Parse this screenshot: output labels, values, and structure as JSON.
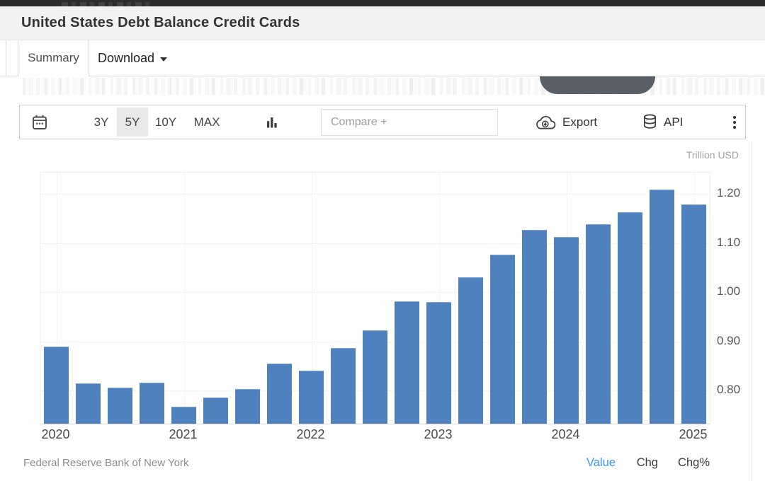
{
  "top_nav": {
    "bg": "#2d2d2d"
  },
  "header": {
    "title": "United States Debt Balance Credit Cards"
  },
  "tabs": {
    "summary": "Summary",
    "download": "Download"
  },
  "toolbar": {
    "ranges": [
      "3Y",
      "5Y",
      "10Y",
      "MAX"
    ],
    "active_range": "5Y",
    "compare_placeholder": "Compare +",
    "export_label": "Export",
    "api_label": "API"
  },
  "chart": {
    "unit_label": "Trillion USD"
  },
  "chart_data": {
    "type": "bar",
    "title": "United States Debt Balance Credit Cards",
    "ylabel": "Trillion USD",
    "xlabel": "",
    "x": [
      "2020 Q1",
      "2020 Q2",
      "2020 Q3",
      "2020 Q4",
      "2021 Q1",
      "2021 Q2",
      "2021 Q3",
      "2021 Q4",
      "2022 Q1",
      "2022 Q2",
      "2022 Q3",
      "2022 Q4",
      "2023 Q1",
      "2023 Q2",
      "2023 Q3",
      "2023 Q4",
      "2024 Q1",
      "2024 Q2",
      "2024 Q3",
      "2024 Q4",
      "2025 Q1"
    ],
    "values": [
      0.89,
      0.815,
      0.806,
      0.817,
      0.768,
      0.786,
      0.803,
      0.855,
      0.841,
      0.887,
      0.923,
      0.981,
      0.98,
      1.03,
      1.077,
      1.127,
      1.113,
      1.138,
      1.163,
      1.208,
      1.179
    ],
    "year_ticks": [
      {
        "label": "2020",
        "index": 0
      },
      {
        "label": "2021",
        "index": 4
      },
      {
        "label": "2022",
        "index": 8
      },
      {
        "label": "2023",
        "index": 12
      },
      {
        "label": "2024",
        "index": 16
      },
      {
        "label": "2025",
        "index": 20
      }
    ],
    "yticks": [
      {
        "value": 0.8,
        "label": "0.80"
      },
      {
        "value": 0.9,
        "label": "0.90"
      },
      {
        "value": 1.0,
        "label": "1.00"
      },
      {
        "value": 1.1,
        "label": "1.10"
      },
      {
        "value": 1.2,
        "label": "1.20"
      }
    ],
    "ylim": [
      0.733,
      1.243
    ],
    "grid": true,
    "legend": false,
    "bar_color": "#4e81bd",
    "bar_border_color": "#7ba1ce"
  },
  "footer": {
    "source": "Federal Reserve Bank of New York",
    "columns": [
      "Value",
      "Chg",
      "Chg%"
    ],
    "value_color": "#3a97f2"
  },
  "misc": {
    "cutoff_shape_color": "#5a5e66"
  }
}
